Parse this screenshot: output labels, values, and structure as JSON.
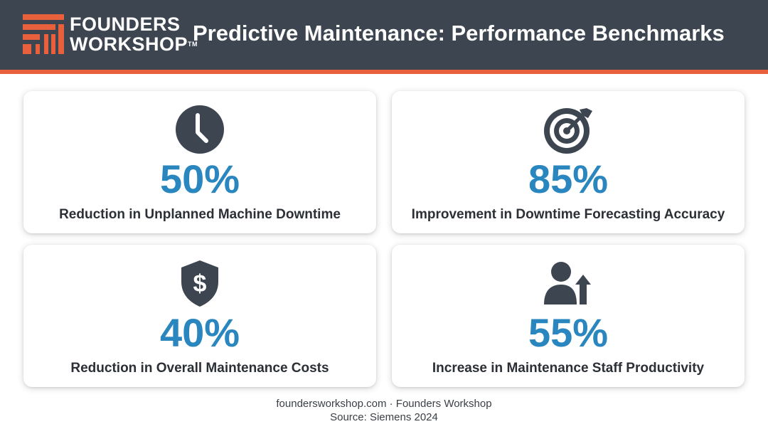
{
  "header": {
    "logo": {
      "line1": "FOUNDERS",
      "line2": "WORKSHOP",
      "trademark": "TM"
    },
    "title": "Predictive Maintenance: Performance Benchmarks"
  },
  "colors": {
    "header_bg": "#3d4550",
    "accent": "#e8603c",
    "value_blue": "#2a86bf",
    "icon_dark": "#3d4550"
  },
  "cards": [
    {
      "icon": "clock-icon",
      "value": "50%",
      "label": "Reduction in Unplanned Machine Downtime"
    },
    {
      "icon": "target-icon",
      "value": "85%",
      "label": "Improvement in Downtime Forecasting Accuracy"
    },
    {
      "icon": "shield-dollar-icon",
      "value": "40%",
      "label": "Reduction in Overall Maintenance Costs"
    },
    {
      "icon": "person-arrow-up-icon",
      "value": "55%",
      "label": "Increase in Maintenance Staff Productivity"
    }
  ],
  "footer": {
    "site": "foundersworkshop.com · Founders Workshop",
    "source": "Source: Siemens 2024"
  }
}
